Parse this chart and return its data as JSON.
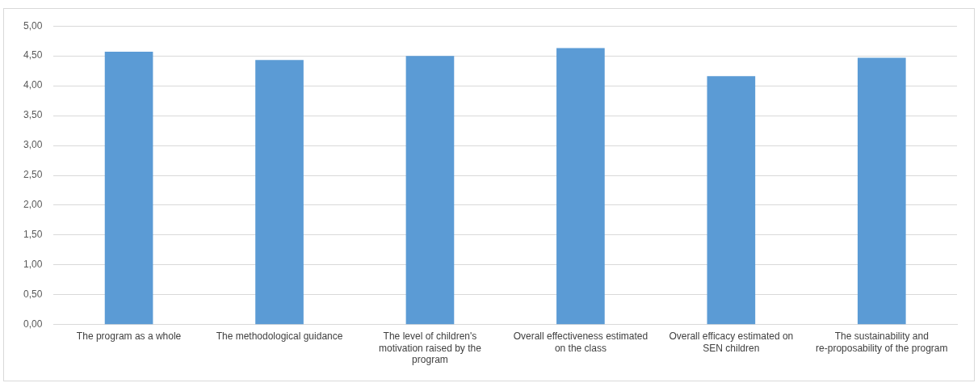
{
  "chart_data": {
    "type": "bar",
    "categories": [
      "The program as a whole",
      "The methodological guidance",
      "The level of children's motivation raised by the program",
      "Overall effectiveness estimated on the class",
      "Overall efficacy estimated on SEN children",
      "The sustainability and re-proposability of the program"
    ],
    "values": [
      4.57,
      4.43,
      4.5,
      4.63,
      4.16,
      4.47
    ],
    "color": "#5b9bd5",
    "ylim": [
      0,
      5
    ],
    "yticks": [
      {
        "value": 0,
        "label": "0,00"
      },
      {
        "value": 0.5,
        "label": "0,50"
      },
      {
        "value": 1,
        "label": "1,00"
      },
      {
        "value": 1.5,
        "label": "1,50"
      },
      {
        "value": 2,
        "label": "2,00"
      },
      {
        "value": 2.5,
        "label": "2,50"
      },
      {
        "value": 3,
        "label": "3,00"
      },
      {
        "value": 3.5,
        "label": "3,50"
      },
      {
        "value": 4,
        "label": "4,00"
      },
      {
        "value": 4.5,
        "label": "4,50"
      },
      {
        "value": 5,
        "label": "5,00"
      }
    ],
    "grid": "y"
  }
}
